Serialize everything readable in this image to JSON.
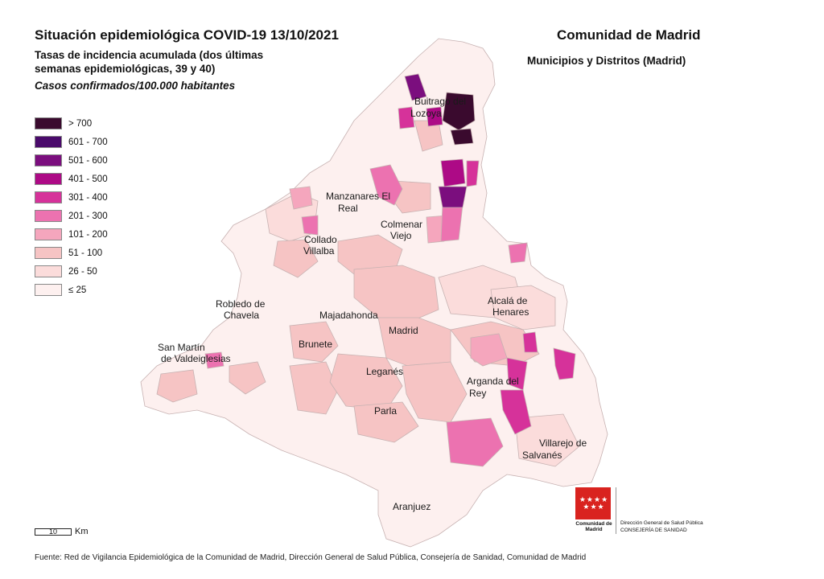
{
  "header": {
    "title": "Situación epidemiológica COVID-19  13/10/2021",
    "subtitle": "Tasas de incidencia acumulada (dos últimas semanas epidemiológicas, 39 y 40)",
    "units": "Casos confirmados/100.000 habitantes",
    "region": "Comunidad de Madrid",
    "scope": "Municipios y Distritos (Madrid)"
  },
  "legend": [
    {
      "label": "> 700",
      "color": "#3a0a2e"
    },
    {
      "label": "601 - 700",
      "color": "#4a0a6b"
    },
    {
      "label": "501 - 600",
      "color": "#7b0e7e"
    },
    {
      "label": "401 - 500",
      "color": "#ad0a86"
    },
    {
      "label": "301 - 400",
      "color": "#d6329a"
    },
    {
      "label": "201 - 300",
      "color": "#ec72b0"
    },
    {
      "label": "101 - 200",
      "color": "#f5a6bd"
    },
    {
      "label": "51 - 100",
      "color": "#f6c4c4"
    },
    {
      "label": "26 - 50",
      "color": "#fbdcdb"
    },
    {
      "label": "≤ 25",
      "color": "#fdf0ef"
    }
  ],
  "places": [
    "Buitrago del Lozoya",
    "Manzanares El Real",
    "Colmenar Viejo",
    "Collado Villalba",
    "Robledo de Chavela",
    "Majadahonda",
    "Madrid",
    "Alcalá de Henares",
    "San Martín de Valdeiglesias",
    "Brunete",
    "Leganés",
    "Arganda del Rey",
    "Parla",
    "Villarejo de Salvanés",
    "Aranjuez"
  ],
  "scale": {
    "value": "10",
    "unit": "Km"
  },
  "logo": {
    "name": "Comunidad de Madrid",
    "dept_line1": "Dirección General de Salud Pública",
    "dept_line2": "CONSEJERÍA DE SANIDAD",
    "stars": "★★★★ ★★★"
  },
  "source": "Fuente: Red de Vigilancia Epidemiológica de la Comunidad de Madrid, Dirección General de Salud Pública, Consejería de Sanidad, Comunidad de Madrid"
}
